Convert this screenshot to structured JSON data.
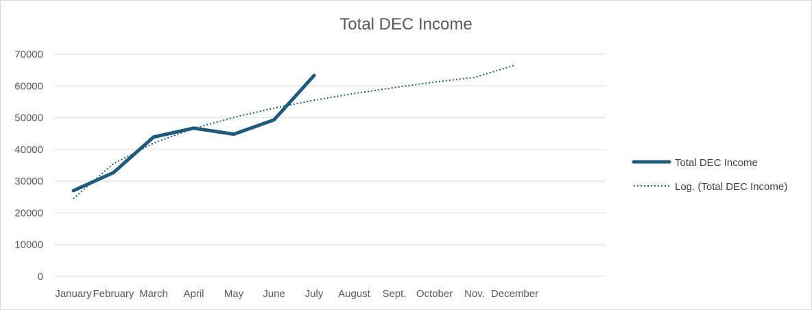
{
  "chart_data": {
    "type": "line",
    "title": "Total DEC Income",
    "categories": [
      "January",
      "February",
      "March",
      "April",
      "May",
      "June",
      "July",
      "August",
      "Sept.",
      "October",
      "Nov.",
      "December"
    ],
    "ylim": [
      0,
      70000
    ],
    "yticks": [
      0,
      10000,
      20000,
      30000,
      40000,
      50000,
      60000,
      70000
    ],
    "grid": true,
    "legend_position": "right",
    "series": [
      {
        "name": "Total DEC Income",
        "style": "solid",
        "color": "#1f5a7a",
        "values": [
          27000,
          32700,
          43900,
          46700,
          44800,
          49300,
          63300,
          null,
          null,
          null,
          null,
          null
        ]
      },
      {
        "name": "Log. (Total DEC Income)",
        "style": "dotted",
        "trendline": "logarithmic",
        "color": "#1f5a7a",
        "values": [
          24500,
          35500,
          42000,
          46600,
          50100,
          53000,
          55500,
          57600,
          59500,
          61200,
          62700,
          66500
        ]
      }
    ]
  }
}
